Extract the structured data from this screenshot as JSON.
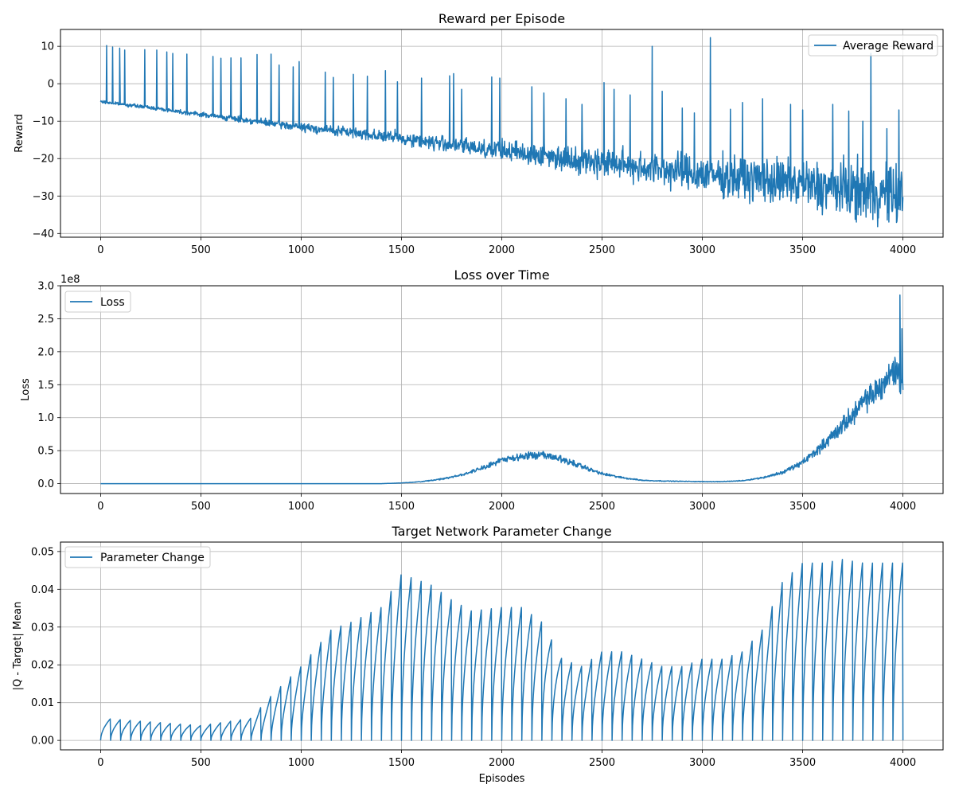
{
  "figure": {
    "background": "#ffffff",
    "line_color": "#1f77b4",
    "grid_color": "#b0b0b0"
  },
  "chart_data": [
    {
      "type": "line",
      "title": "Reward per Episode",
      "xlabel": "",
      "ylabel": "Reward",
      "xlim": [
        -200,
        4200
      ],
      "ylim": [
        -41,
        14.5
      ],
      "xticks": [
        0,
        500,
        1000,
        1500,
        2000,
        2500,
        3000,
        3500,
        4000
      ],
      "yticks": [
        10,
        0,
        -10,
        -20,
        -30,
        -40
      ],
      "ytick_labels": [
        "10",
        "0",
        "−10",
        "−20",
        "−30",
        "−40"
      ],
      "offset_text": "",
      "grid": true,
      "legend": "upper right",
      "series": [
        {
          "name": "Average Reward",
          "x": [
            0,
            250,
            500,
            750,
            1000,
            1250,
            1500,
            1750,
            2000,
            2250,
            2500,
            2750,
            3000,
            3250,
            3500,
            3750,
            4000
          ],
          "y": [
            -4.8,
            -6.4,
            -8.2,
            -9.9,
            -11.6,
            -13.0,
            -14.6,
            -16.3,
            -17.8,
            -19.4,
            -21.0,
            -22.6,
            -24.2,
            -25.6,
            -27.0,
            -28.4,
            -30.0
          ],
          "spikes": [
            [
              30,
              10.2
            ],
            [
              60,
              9.8
            ],
            [
              95,
              9.5
            ],
            [
              120,
              9.0
            ],
            [
              220,
              9.1
            ],
            [
              280,
              9.0
            ],
            [
              330,
              8.5
            ],
            [
              360,
              8.1
            ],
            [
              430,
              7.9
            ],
            [
              560,
              7.3
            ],
            [
              600,
              6.8
            ],
            [
              650,
              6.9
            ],
            [
              700,
              6.9
            ],
            [
              780,
              7.8
            ],
            [
              850,
              7.9
            ],
            [
              890,
              5.0
            ],
            [
              960,
              4.5
            ],
            [
              990,
              5.9
            ],
            [
              1120,
              3.1
            ],
            [
              1160,
              1.7
            ],
            [
              1260,
              2.5
            ],
            [
              1330,
              2.0
            ],
            [
              1420,
              3.5
            ],
            [
              1480,
              0.5
            ],
            [
              1600,
              1.5
            ],
            [
              1740,
              2.1
            ],
            [
              1760,
              2.7
            ],
            [
              1800,
              -1.5
            ],
            [
              1950,
              1.8
            ],
            [
              1990,
              1.5
            ],
            [
              2150,
              -0.8
            ],
            [
              2210,
              -2.5
            ],
            [
              2320,
              -4.0
            ],
            [
              2400,
              -5.5
            ],
            [
              2510,
              0.3
            ],
            [
              2560,
              -1.5
            ],
            [
              2640,
              -3.0
            ],
            [
              2750,
              10.0
            ],
            [
              2800,
              -2.0
            ],
            [
              2900,
              -6.5
            ],
            [
              2960,
              -7.8
            ],
            [
              3040,
              12.3
            ],
            [
              3140,
              -6.8
            ],
            [
              3200,
              -5.0
            ],
            [
              3300,
              -4.0
            ],
            [
              3440,
              -5.5
            ],
            [
              3500,
              -7.0
            ],
            [
              3650,
              -5.5
            ],
            [
              3730,
              -7.3
            ],
            [
              3800,
              -10.0
            ],
            [
              3840,
              8.1
            ],
            [
              3920,
              -12.0
            ],
            [
              3980,
              -7.0
            ]
          ]
        }
      ]
    },
    {
      "type": "line",
      "title": "Loss over Time",
      "xlabel": "",
      "ylabel": "Loss",
      "xlim": [
        -200,
        4200
      ],
      "ylim": [
        -0.15,
        3.0
      ],
      "xticks": [
        0,
        500,
        1000,
        1500,
        2000,
        2500,
        3000,
        3500,
        4000
      ],
      "yticks": [
        0.0,
        0.5,
        1.0,
        1.5,
        2.0,
        2.5,
        3.0
      ],
      "ytick_labels": [
        "0.0",
        "0.5",
        "1.0",
        "1.5",
        "2.0",
        "2.5",
        "3.0"
      ],
      "offset_text": "1e8",
      "grid": true,
      "legend": "upper left",
      "series": [
        {
          "name": "Loss",
          "x": [
            0,
            1400,
            1500,
            1600,
            1700,
            1800,
            1900,
            2000,
            2100,
            2200,
            2300,
            2400,
            2500,
            2600,
            2700,
            2800,
            2900,
            3000,
            3100,
            3200,
            3300,
            3400,
            3500,
            3600,
            3700,
            3800,
            3900,
            3960,
            4000
          ],
          "y": [
            0.0,
            0.0,
            0.01,
            0.03,
            0.07,
            0.13,
            0.24,
            0.35,
            0.42,
            0.43,
            0.37,
            0.26,
            0.15,
            0.09,
            0.05,
            0.04,
            0.035,
            0.03,
            0.03,
            0.045,
            0.09,
            0.17,
            0.32,
            0.58,
            0.88,
            1.22,
            1.5,
            1.75,
            1.5
          ],
          "spikes": [
            [
              3985,
              2.86
            ],
            [
              3995,
              2.35
            ]
          ]
        }
      ]
    },
    {
      "type": "line",
      "title": "Target Network Parameter Change",
      "xlabel": "Episodes",
      "ylabel": "|Q - Target| Mean",
      "xlim": [
        -200,
        4200
      ],
      "ylim": [
        -0.0025,
        0.0525
      ],
      "xticks": [
        0,
        500,
        1000,
        1500,
        2000,
        2500,
        3000,
        3500,
        4000
      ],
      "yticks": [
        0.0,
        0.01,
        0.02,
        0.03,
        0.04,
        0.05
      ],
      "ytick_labels": [
        "0.00",
        "0.01",
        "0.02",
        "0.03",
        "0.04",
        "0.05"
      ],
      "offset_text": "",
      "grid": true,
      "legend": "upper left",
      "series": [
        {
          "name": "Parameter Change",
          "sawtooth_period": 50,
          "peak_x": [
            0,
            500,
            750,
            850,
            1000,
            1150,
            1250,
            1400,
            1500,
            1650,
            1750,
            1850,
            2000,
            2100,
            2200,
            2300,
            2400,
            2500,
            2600,
            2700,
            2800,
            2900,
            3000,
            3100,
            3200,
            3300,
            3400,
            3500,
            3600,
            3700,
            3800,
            3900,
            4000
          ],
          "peak_y": [
            0.006,
            0.004,
            0.006,
            0.012,
            0.02,
            0.03,
            0.032,
            0.036,
            0.045,
            0.042,
            0.038,
            0.035,
            0.036,
            0.036,
            0.032,
            0.022,
            0.02,
            0.024,
            0.024,
            0.022,
            0.02,
            0.02,
            0.022,
            0.022,
            0.024,
            0.03,
            0.043,
            0.048,
            0.048,
            0.049,
            0.048,
            0.048,
            0.048
          ]
        }
      ]
    }
  ]
}
